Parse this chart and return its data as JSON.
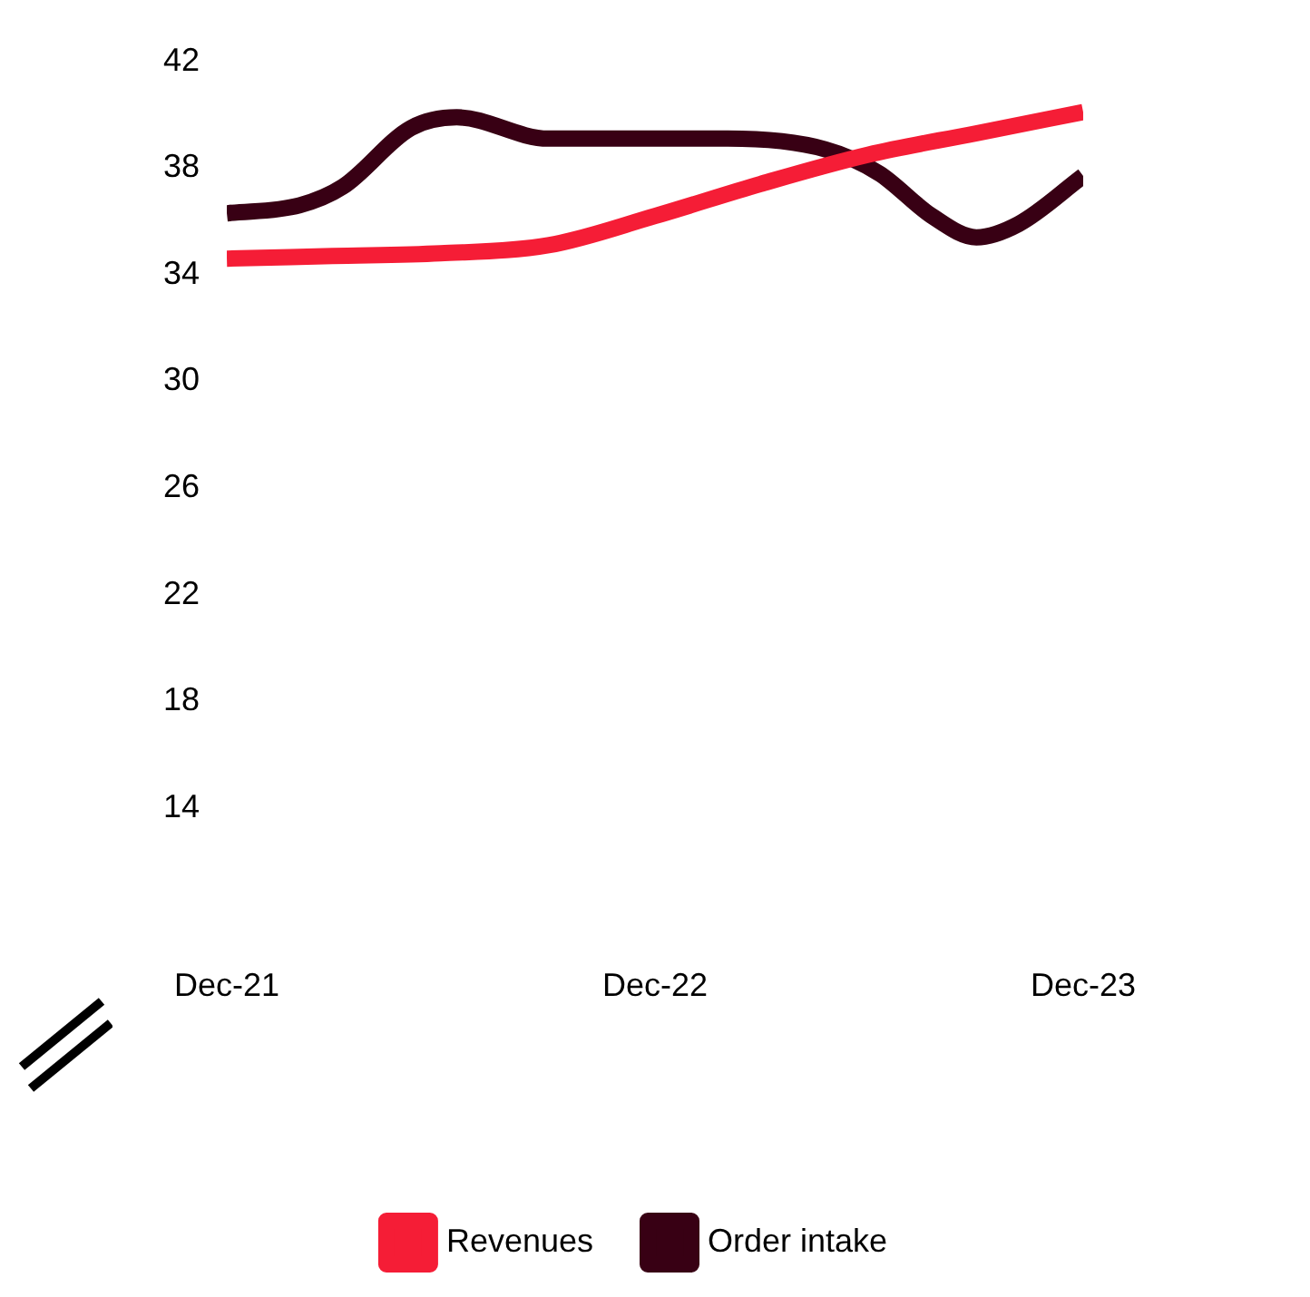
{
  "chart_data": {
    "type": "line",
    "x": [
      "2021-12",
      "2022-03",
      "2022-06",
      "2022-09",
      "2022-12",
      "2023-03",
      "2023-06",
      "2023-09",
      "2023-12"
    ],
    "series": [
      {
        "name": "Revenues",
        "color": "#f51d36",
        "values": [
          34.6,
          34.7,
          34.8,
          35.1,
          36.2,
          37.4,
          38.5,
          39.3,
          40.1
        ]
      },
      {
        "name": "Order intake",
        "color": "#380014",
        "x": [
          "2021-12",
          "2022-02",
          "2022-03-10",
          "2022-05-07",
          "2022-06-15",
          "2022-09",
          "2022-12",
          "2023-02",
          "2023-04-25",
          "2023-06-10",
          "2023-07-25",
          "2023-09",
          "2023-10-07",
          "2023-12"
        ],
        "values": [
          36.3,
          36.6,
          37.3,
          39.5,
          39.9,
          39.1,
          39.1,
          39.1,
          38.7,
          37.8,
          36.2,
          35.4,
          35.9,
          37.7
        ]
      }
    ],
    "xlim": [
      "2021-12",
      "2023-12"
    ],
    "xticks": [
      {
        "value": "2021-12",
        "label": "Dec-21"
      },
      {
        "value": "2022-12",
        "label": "Dec-22"
      },
      {
        "value": "2023-12",
        "label": "Dec-23"
      }
    ],
    "ylim": [
      14,
      42
    ],
    "yticks": [
      14,
      18,
      22,
      26,
      30,
      34,
      38,
      42
    ],
    "grid": false,
    "legend": "bottom",
    "marker": "none",
    "line_style": "solid"
  }
}
